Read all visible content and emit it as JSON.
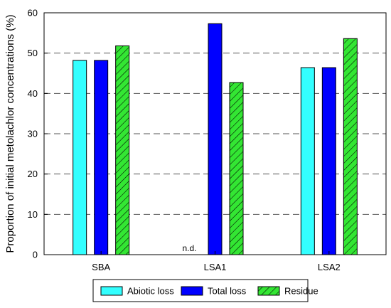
{
  "chart_data": {
    "type": "bar",
    "ylabel": "Proportion of initial metolachlor concentrations (%)",
    "xlabel": "",
    "ylim": [
      0,
      60
    ],
    "yticks": [
      0,
      10,
      20,
      30,
      40,
      50,
      60
    ],
    "grid": "horizontal-dashed",
    "legend_position": "bottom",
    "categories": [
      "SBA",
      "LSA1",
      "LSA2"
    ],
    "series": [
      {
        "name": "Abiotic loss",
        "values": [
          48.2,
          null,
          46.4
        ],
        "color": "#33ffff",
        "pattern": "solid"
      },
      {
        "name": "Total loss",
        "values": [
          48.2,
          57.3,
          46.4
        ],
        "color": "#0000ff",
        "pattern": "solid"
      },
      {
        "name": "Residue",
        "values": [
          51.8,
          42.7,
          53.6
        ],
        "color": "#33e633",
        "pattern": "hatch"
      }
    ],
    "annotations": [
      {
        "text": "n.d.",
        "category": "LSA1",
        "series": "Abiotic loss"
      }
    ]
  }
}
